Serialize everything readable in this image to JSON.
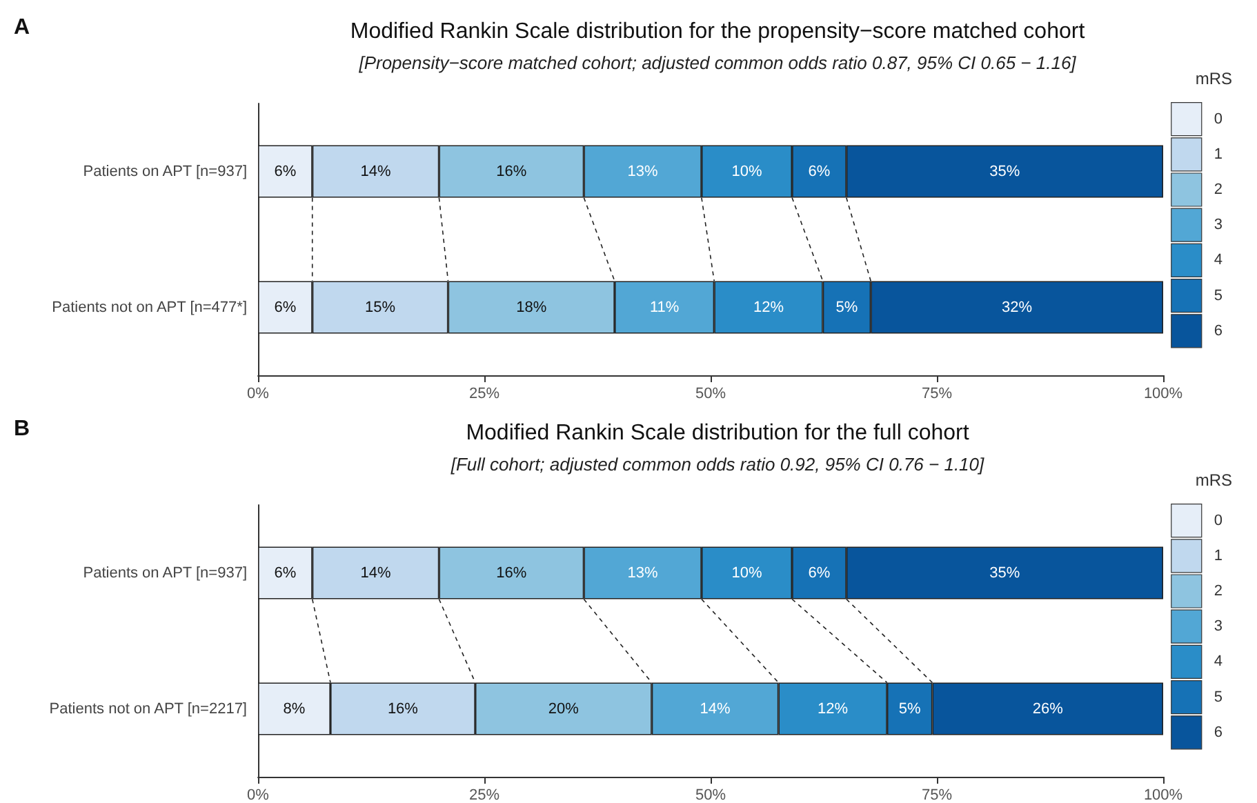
{
  "chart_data": [
    {
      "type": "bar",
      "orientation": "horizontal",
      "stacked": true,
      "title": "Modified Rankin Scale distribution for the propensity−score matched cohort",
      "subtitle": "[Propensity−score matched cohort; adjusted common odds ratio 0.87, 95% CI 0.65 − 1.16]",
      "annotations": [
        "A"
      ],
      "legend_title": "mRS",
      "legend": "right",
      "grid": false,
      "categories": [
        "Patients on APT [n=937]",
        "Patients not on APT [n=477*]"
      ],
      "xlim": [
        0,
        100
      ],
      "xticks": [
        {
          "value": 0,
          "label": "0%"
        },
        {
          "value": 25,
          "label": "25%"
        },
        {
          "value": 50,
          "label": "50%"
        },
        {
          "value": 75,
          "label": "75%"
        },
        {
          "value": 100,
          "label": "100%"
        }
      ],
      "series": [
        {
          "name": "0",
          "color": "#e6eef8",
          "values": [
            6,
            6
          ],
          "value_labels": [
            "6%",
            "6%"
          ]
        },
        {
          "name": "1",
          "color": "#c0d8ee",
          "values": [
            14,
            15
          ],
          "value_labels": [
            "14%",
            "15%"
          ]
        },
        {
          "name": "2",
          "color": "#8ec4e0",
          "values": [
            16,
            18.4
          ],
          "value_labels": [
            "16%",
            "18%"
          ]
        },
        {
          "name": "3",
          "color": "#52a7d5",
          "values": [
            13,
            11
          ],
          "value_labels": [
            "13%",
            "11%"
          ]
        },
        {
          "name": "4",
          "color": "#2a8dc8",
          "values": [
            10,
            12
          ],
          "value_labels": [
            "10%",
            "12%"
          ]
        },
        {
          "name": "5",
          "color": "#1672b6",
          "values": [
            6,
            5.3
          ],
          "value_labels": [
            "6%",
            "5%"
          ]
        },
        {
          "name": "6",
          "color": "#08559c",
          "values": [
            35,
            32.3
          ],
          "value_labels": [
            "35%",
            "32%"
          ]
        }
      ]
    },
    {
      "type": "bar",
      "orientation": "horizontal",
      "stacked": true,
      "title": "Modified Rankin Scale distribution for the full cohort",
      "subtitle": "[Full cohort; adjusted common odds ratio 0.92, 95% CI 0.76 − 1.10]",
      "annotations": [
        "B"
      ],
      "legend_title": "mRS",
      "legend": "right",
      "grid": false,
      "categories": [
        "Patients on APT [n=937]",
        "Patients not on APT [n=2217]"
      ],
      "xlim": [
        0,
        100
      ],
      "xticks": [
        {
          "value": 0,
          "label": "0%"
        },
        {
          "value": 25,
          "label": "25%"
        },
        {
          "value": 50,
          "label": "50%"
        },
        {
          "value": 75,
          "label": "75%"
        },
        {
          "value": 100,
          "label": "100%"
        }
      ],
      "series": [
        {
          "name": "0",
          "color": "#e6eef8",
          "values": [
            6,
            8
          ],
          "value_labels": [
            "6%",
            "8%"
          ]
        },
        {
          "name": "1",
          "color": "#c0d8ee",
          "values": [
            14,
            16
          ],
          "value_labels": [
            "14%",
            "16%"
          ]
        },
        {
          "name": "2",
          "color": "#8ec4e0",
          "values": [
            16,
            19.5
          ],
          "value_labels": [
            "16%",
            "20%"
          ]
        },
        {
          "name": "3",
          "color": "#52a7d5",
          "values": [
            13,
            14
          ],
          "value_labels": [
            "13%",
            "14%"
          ]
        },
        {
          "name": "4",
          "color": "#2a8dc8",
          "values": [
            10,
            12
          ],
          "value_labels": [
            "10%",
            "12%"
          ]
        },
        {
          "name": "5",
          "color": "#1672b6",
          "values": [
            6,
            5
          ],
          "value_labels": [
            "6%",
            "5%"
          ]
        },
        {
          "name": "6",
          "color": "#08559c",
          "values": [
            35,
            25.5
          ],
          "value_labels": [
            "35%",
            "26%"
          ]
        }
      ]
    }
  ]
}
